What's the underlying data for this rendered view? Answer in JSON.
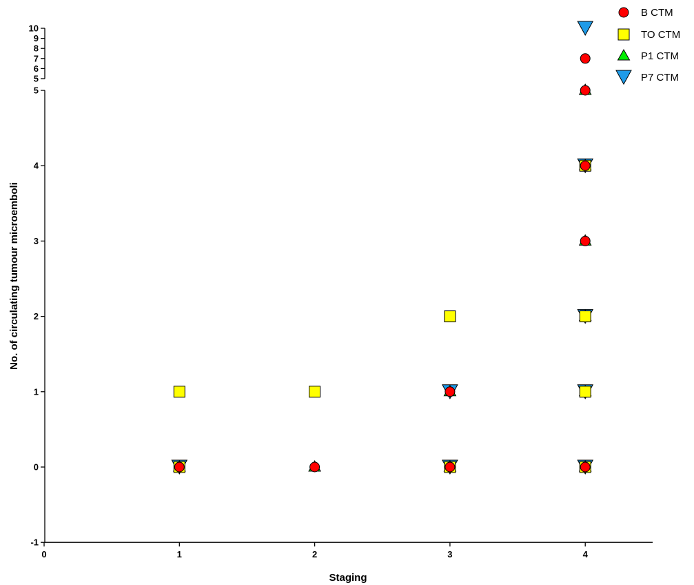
{
  "chart_data": {
    "type": "scatter",
    "title": "",
    "xlabel": "Staging",
    "ylabel": "No. of circulating tumour microemboli",
    "xlim": [
      0,
      4.5
    ],
    "ylim": [
      -1,
      10
    ],
    "y_axis_break": {
      "lower_max": 5,
      "upper_min": 5,
      "upper_max": 10
    },
    "x_ticks": [
      "0",
      "1",
      "2",
      "3",
      "4"
    ],
    "y_ticks_lower": [
      "-1",
      "0",
      "1",
      "2",
      "3",
      "4",
      "5"
    ],
    "y_ticks_upper": [
      "5",
      "6",
      "7",
      "8",
      "9",
      "10"
    ],
    "grid": false,
    "legend_position": "top-right",
    "series": [
      {
        "name": "B CTM",
        "marker": "circle",
        "color": "#ff0000",
        "points": [
          [
            1,
            0
          ],
          [
            2,
            0
          ],
          [
            3,
            0
          ],
          [
            3,
            1
          ],
          [
            4,
            0
          ],
          [
            4,
            3
          ],
          [
            4,
            4
          ],
          [
            4,
            5
          ],
          [
            4,
            7
          ]
        ]
      },
      {
        "name": "TO CTM",
        "marker": "square",
        "color": "#ffff00",
        "points": [
          [
            1,
            0
          ],
          [
            1,
            1
          ],
          [
            2,
            1
          ],
          [
            3,
            0
          ],
          [
            3,
            2
          ],
          [
            4,
            0
          ],
          [
            4,
            1
          ],
          [
            4,
            2
          ],
          [
            4,
            4
          ]
        ]
      },
      {
        "name": "P1 CTM",
        "marker": "triangle-up",
        "color": "#00ee00",
        "points": [
          [
            1,
            0
          ],
          [
            2,
            0
          ],
          [
            3,
            0
          ],
          [
            3,
            1
          ],
          [
            4,
            0
          ],
          [
            4,
            1
          ],
          [
            4,
            2
          ],
          [
            4,
            3
          ],
          [
            4,
            4
          ],
          [
            4,
            5
          ]
        ]
      },
      {
        "name": "P7 CTM",
        "marker": "triangle-down",
        "color": "#1e9be8",
        "points": [
          [
            1,
            0
          ],
          [
            3,
            0
          ],
          [
            3,
            1
          ],
          [
            4,
            0
          ],
          [
            4,
            1
          ],
          [
            4,
            2
          ],
          [
            4,
            4
          ],
          [
            4,
            10
          ]
        ]
      }
    ]
  }
}
